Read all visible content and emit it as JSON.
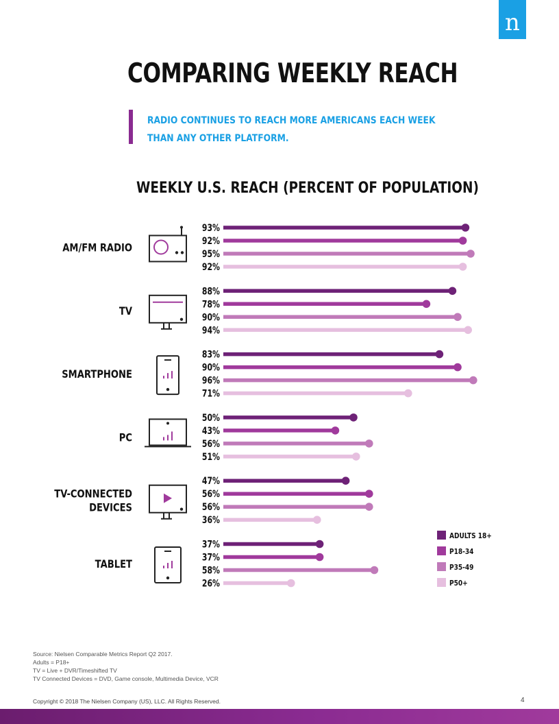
{
  "logo": {
    "letter": "n",
    "color": "#1aa0e4"
  },
  "title": "COMPARING WEEKLY REACH",
  "subtitle": {
    "line1": "RADIO CONTINUES TO REACH MORE AMERICANS EACH WEEK",
    "line2": "THAN ANY OTHER PLATFORM."
  },
  "chart_data": {
    "type": "bar",
    "orientation": "horizontal",
    "style": "lollipop",
    "title": "WEEKLY U.S. REACH (PERCENT OF POPULATION)",
    "value_suffix": "%",
    "categories": [
      {
        "label_lines": [
          "AM/FM RADIO"
        ],
        "icon": "radio-icon"
      },
      {
        "label_lines": [
          "TV"
        ],
        "icon": "tv-icon"
      },
      {
        "label_lines": [
          "SMARTPHONE"
        ],
        "icon": "smartphone-icon"
      },
      {
        "label_lines": [
          "PC"
        ],
        "icon": "laptop-icon"
      },
      {
        "label_lines": [
          "TV-CONNECTED",
          "DEVICES"
        ],
        "icon": "tv-play-icon"
      },
      {
        "label_lines": [
          "TABLET"
        ],
        "icon": "tablet-icon"
      }
    ],
    "series": [
      {
        "name": "ADULTS 18+",
        "color": "#6e2277",
        "values": [
          93,
          88,
          83,
          50,
          47,
          37
        ]
      },
      {
        "name": "P18-34",
        "color": "#a03a9c",
        "values": [
          92,
          78,
          90,
          43,
          56,
          37
        ]
      },
      {
        "name": "P35-49",
        "color": "#c07ab9",
        "values": [
          95,
          90,
          96,
          56,
          56,
          58
        ]
      },
      {
        "name": "P50+",
        "color": "#e6bfdf",
        "values": [
          92,
          94,
          71,
          51,
          36,
          26
        ]
      }
    ],
    "xlim": [
      0,
      100
    ],
    "legend": "bottom-right"
  },
  "footnotes": [
    "Source: Nielsen Comparable Metrics Report Q2 2017.",
    "Adults = P18+",
    "TV = Live + DVR/Timeshifted TV",
    "TV Connected Devices = DVD, Game console, Multimedia Device, VCR"
  ],
  "copyright": "Copyright © 2018 The Nielsen Company (US), LLC. All Rights Reserved.",
  "page_number": "4",
  "colors": {
    "accent": "#8a2b91",
    "blue": "#1aa0e4",
    "icon": "#222222"
  }
}
